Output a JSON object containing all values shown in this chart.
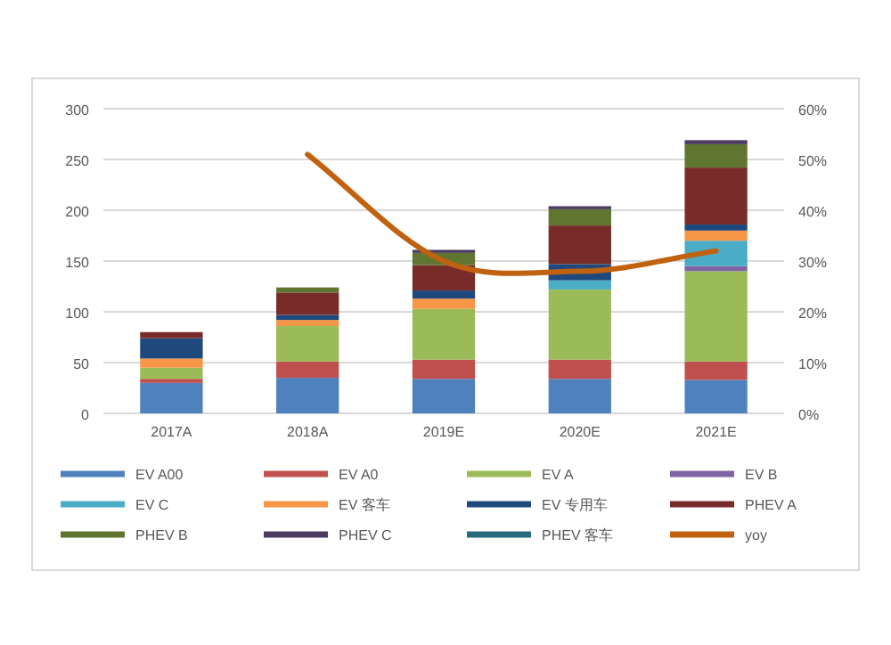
{
  "chart_data": {
    "type": "bar",
    "stacked": true,
    "categories": [
      "2017A",
      "2018A",
      "2019E",
      "2020E",
      "2021E"
    ],
    "series": [
      {
        "name": "EV A00",
        "color": "#4f81bd",
        "values": [
          30,
          35,
          34,
          34,
          33
        ]
      },
      {
        "name": "EV A0",
        "color": "#c0504d",
        "values": [
          4,
          16,
          19,
          19,
          18
        ]
      },
      {
        "name": "EV A",
        "color": "#9bbb59",
        "values": [
          11,
          35,
          50,
          69,
          89
        ]
      },
      {
        "name": "EV B",
        "color": "#8064a2",
        "values": [
          0,
          0,
          0,
          0,
          5
        ]
      },
      {
        "name": "EV C",
        "color": "#4bacc6",
        "values": [
          0,
          0,
          0,
          9,
          25
        ]
      },
      {
        "name": "EV 客车",
        "color": "#f79646",
        "values": [
          9,
          6,
          10,
          0,
          10
        ]
      },
      {
        "name": "EV 专用车",
        "color": "#1f497d",
        "values": [
          20,
          5,
          8,
          16,
          6
        ]
      },
      {
        "name": "PHEV A",
        "color": "#772c2a",
        "values": [
          6,
          22,
          25,
          38,
          56
        ]
      },
      {
        "name": "PHEV B",
        "color": "#5f7530",
        "values": [
          0,
          5,
          12,
          16,
          23
        ]
      },
      {
        "name": "PHEV C",
        "color": "#4d3b62",
        "values": [
          0,
          0,
          3,
          3,
          4
        ]
      },
      {
        "name": "PHEV 客车",
        "color": "#276a7c",
        "values": [
          0,
          0,
          0,
          0,
          0
        ]
      },
      {
        "name": "yoy",
        "color": "#c0620f",
        "type": "line",
        "axis": "y2",
        "values": [
          null,
          51,
          30,
          28,
          32
        ]
      }
    ],
    "ylim": [
      0,
      300
    ],
    "yticks": [
      0,
      50,
      100,
      150,
      200,
      250,
      300
    ],
    "y2lim": [
      0,
      60
    ],
    "y2ticks": [
      {
        "value": 0,
        "label": "0%"
      },
      {
        "value": 10,
        "label": "10%"
      },
      {
        "value": 20,
        "label": "20%"
      },
      {
        "value": 30,
        "label": "30%"
      },
      {
        "value": 40,
        "label": "40%"
      },
      {
        "value": 50,
        "label": "50%"
      },
      {
        "value": 60,
        "label": "60%"
      }
    ],
    "grid": "y",
    "legend": "bottom"
  }
}
